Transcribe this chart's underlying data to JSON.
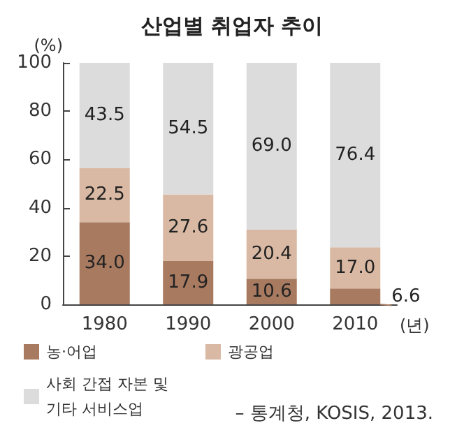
{
  "chart_data": {
    "type": "bar",
    "title": "산업별 취업자 추이",
    "ylabel": "(%)",
    "xlabel": "(년)",
    "categories": [
      "1980",
      "1990",
      "2000",
      "2010"
    ],
    "stacked": true,
    "ylim": [
      0,
      100
    ],
    "yticks": [
      0,
      20,
      40,
      60,
      80,
      100
    ],
    "grid": false,
    "legend": "bottom",
    "series": [
      {
        "name": "농·어업",
        "color": "#a87a60",
        "values": [
          34.0,
          17.9,
          10.6,
          6.6
        ],
        "value_labels": [
          "34.0",
          "17.9",
          "10.6",
          "6.6"
        ]
      },
      {
        "name": "광공업",
        "color": "#d9b9a3",
        "values": [
          22.5,
          27.6,
          20.4,
          17.0
        ],
        "value_labels": [
          "22.5",
          "27.6",
          "20.4",
          "17.0"
        ]
      },
      {
        "name": "사회 간접 자본 및 기타 서비스업",
        "color": "#dcdcdc",
        "values": [
          43.5,
          54.5,
          69.0,
          76.4
        ],
        "value_labels": [
          "43.5",
          "54.5",
          "69.0",
          "76.4"
        ]
      }
    ],
    "annotations": [
      "– 통계청, KOSIS, 2013."
    ]
  }
}
